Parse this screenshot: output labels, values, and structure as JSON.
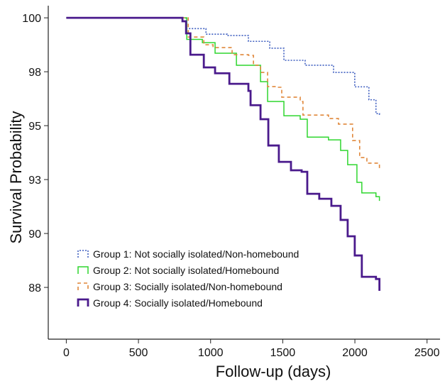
{
  "chart_data": {
    "type": "line",
    "title": "",
    "xlabel": "Follow-up (days)",
    "ylabel": "Survival Probability",
    "xlim": [
      -125,
      2590
    ],
    "ylim": [
      85.1,
      100.3
    ],
    "x_ticks": [
      0,
      500,
      1000,
      1500,
      2000,
      2500
    ],
    "x_tick_labels": [
      "0",
      "500",
      "1000",
      "1500",
      "2000",
      "2500"
    ],
    "y_ticks": [
      100,
      97.5,
      95,
      92.5,
      90,
      87.5
    ],
    "y_tick_labels": [
      "100",
      "98",
      "95",
      "93",
      "90",
      "88"
    ],
    "grid": false,
    "legend_position": "bottom-left",
    "step": true,
    "series": [
      {
        "name": "Group 1: Not socially isolated/Non-homebound",
        "color": "#3f5fc0",
        "style": "dotted",
        "x": [
          0,
          796,
          830,
          968,
          1115,
          1262,
          1410,
          1508,
          1655,
          1852,
          1999,
          2097,
          2146,
          2170
        ],
        "y": [
          100,
          100,
          99.5,
          99.24,
          99.18,
          98.91,
          98.59,
          98.03,
          97.8,
          97.47,
          96.8,
          96.2,
          95.56,
          95.46
        ]
      },
      {
        "name": "Group 2: Not socially isolated/Homebound",
        "color": "#2fd62f",
        "style": "solid",
        "x": [
          0,
          796,
          835,
          943,
          1031,
          1179,
          1262,
          1346,
          1395,
          1459,
          1508,
          1621,
          1670,
          1817,
          1901,
          1950,
          2014,
          2048,
          2146,
          2170
        ],
        "y": [
          100,
          100,
          99.0,
          98.85,
          98.36,
          97.8,
          97.8,
          97.04,
          96.12,
          96.12,
          95.46,
          95.3,
          94.47,
          94.34,
          93.85,
          93.19,
          92.37,
          91.88,
          91.71,
          91.51
        ]
      },
      {
        "name": "Group 3: Socially isolated/Non-homebound",
        "color": "#e0873a",
        "style": "dashed",
        "x": [
          0,
          796,
          845,
          933,
          953,
          1017,
          1149,
          1262,
          1297,
          1346,
          1395,
          1459,
          1493,
          1621,
          1640,
          1817,
          1886,
          1984,
          2033,
          2083,
          2170
        ],
        "y": [
          100,
          100,
          99.11,
          99.11,
          98.75,
          98.62,
          98.29,
          98.26,
          97.8,
          97.47,
          96.81,
          96.78,
          96.32,
          96.12,
          95.49,
          95.33,
          95.07,
          94.31,
          93.52,
          93.26,
          92.99
        ]
      },
      {
        "name": "Group 4: Socially isolated/Homebound",
        "color": "#4a1a8c",
        "style": "thick",
        "x": [
          0,
          786,
          805,
          830,
          860,
          933,
          953,
          1031,
          1130,
          1262,
          1277,
          1346,
          1400,
          1469,
          1473,
          1557,
          1631,
          1670,
          1753,
          1837,
          1901,
          1950,
          1999,
          2048,
          2146,
          2170
        ],
        "y": [
          100,
          100,
          99.84,
          99.28,
          98.29,
          98.29,
          97.7,
          97.43,
          96.94,
          96.61,
          95.95,
          95.3,
          94.08,
          94.08,
          93.32,
          92.93,
          92.86,
          91.84,
          91.61,
          91.28,
          90.63,
          89.87,
          88.98,
          87.99,
          87.89,
          87.34
        ]
      }
    ]
  }
}
